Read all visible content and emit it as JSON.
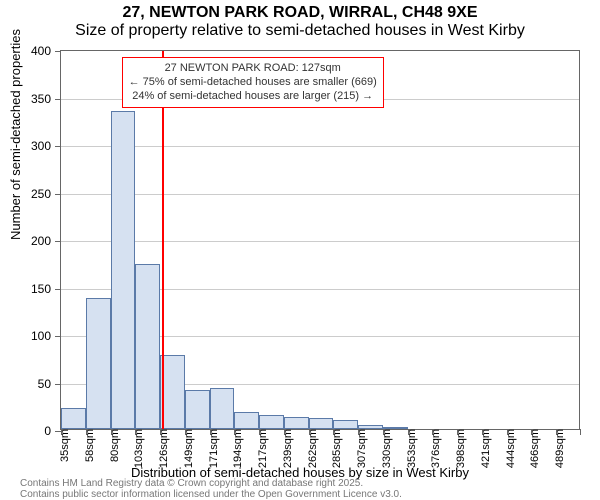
{
  "title_line1": "27, NEWTON PARK ROAD, WIRRAL, CH48 9XE",
  "title_line2": "Size of property relative to semi-detached houses in West Kirby",
  "title_fontsize": 14,
  "subtitle_fontsize": 13,
  "ylabel": "Number of semi-detached properties",
  "xlabel": "Distribution of semi-detached houses by size in West Kirby",
  "chart": {
    "type": "histogram",
    "ylim": [
      0,
      400
    ],
    "ytick_step": 50,
    "xtick_labels": [
      "35sqm",
      "58sqm",
      "80sqm",
      "103sqm",
      "126sqm",
      "149sqm",
      "171sqm",
      "194sqm",
      "217sqm",
      "239sqm",
      "262sqm",
      "285sqm",
      "307sqm",
      "330sqm",
      "353sqm",
      "376sqm",
      "398sqm",
      "421sqm",
      "444sqm",
      "466sqm",
      "489sqm"
    ],
    "values": [
      22,
      138,
      335,
      174,
      78,
      41,
      43,
      18,
      15,
      13,
      12,
      10,
      4,
      2,
      0,
      0,
      0,
      0,
      0,
      0,
      0
    ],
    "bar_fill": "#d6e1f1",
    "bar_stroke": "#5b7aa8",
    "background_color": "#ffffff",
    "grid_color": "#cccccc",
    "axis_color": "#666666",
    "vline_color": "#ff0000",
    "vline_value": 127,
    "x_min": 35,
    "x_bin_width": 22.65
  },
  "annotation": {
    "border_color": "#ff0000",
    "bg_color": "#ffffff",
    "text_color": "#333333",
    "line1": "27 NEWTON PARK ROAD: 127sqm",
    "line2": "← 75% of semi-detached houses are smaller (669)",
    "line3": "24% of semi-detached houses are larger (215) →"
  },
  "footer_line1": "Contains HM Land Registry data © Crown copyright and database right 2025.",
  "footer_line2": "Contains public sector information licensed under the Open Government Licence v3.0."
}
